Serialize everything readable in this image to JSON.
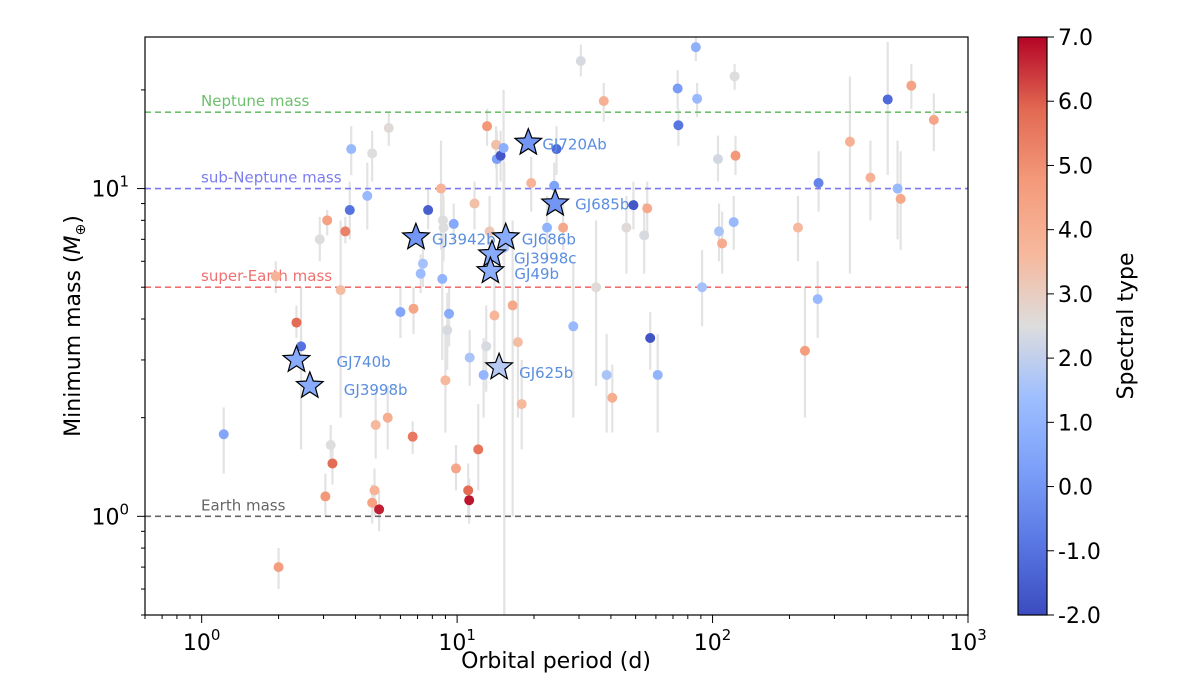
{
  "chart_data": {
    "type": "scatter",
    "xlabel": "Orbital period (d)",
    "ylabel_main": "Minimum mass (",
    "ylabel_sym": "M",
    "ylabel_sub": "⊕",
    "ylabel_close": ")",
    "xscale": "log",
    "yscale": "log",
    "xlim": [
      0.6,
      1000
    ],
    "ylim": [
      0.5,
      29
    ],
    "x_ticks": [
      {
        "base": "10",
        "exp": "0",
        "value": 1
      },
      {
        "base": "10",
        "exp": "1",
        "value": 10
      },
      {
        "base": "10",
        "exp": "2",
        "value": 100
      },
      {
        "base": "10",
        "exp": "3",
        "value": 1000
      }
    ],
    "y_ticks": [
      {
        "base": "10",
        "exp": "0",
        "value": 1
      },
      {
        "base": "10",
        "exp": "1",
        "value": 10
      }
    ],
    "reference_lines": [
      {
        "label": "Neptune mass",
        "value": 17.1,
        "color": "#6cc06c"
      },
      {
        "label": "sub-Neptune mass",
        "value": 10,
        "color": "#7b7bf0"
      },
      {
        "label": "super-Earth mass",
        "value": 5,
        "color": "#f07070"
      },
      {
        "label": "Earth mass",
        "value": 1,
        "color": "#666666"
      }
    ],
    "colorbar": {
      "label": "Spectral type",
      "min": -2,
      "max": 7,
      "ticks": [
        "-2.0",
        "-1.0",
        "0.0",
        "1.0",
        "2.0",
        "3.0",
        "4.0",
        "5.0",
        "6.0",
        "7.0"
      ]
    },
    "points": [
      {
        "x": 1.22,
        "y": 1.78,
        "s": 0.5,
        "lo": 1.35,
        "hi": 2.15
      },
      {
        "x": 1.95,
        "y": 5.4,
        "s": 3.8,
        "lo": 4.8,
        "hi": 6.0
      },
      {
        "x": 2.0,
        "y": 0.7,
        "s": 4.6,
        "lo": 0.6,
        "hi": 0.8
      },
      {
        "x": 2.35,
        "y": 3.9,
        "s": 5.8,
        "lo": 3.5,
        "hi": 4.4
      },
      {
        "x": 2.45,
        "y": 3.3,
        "s": -1.0,
        "lo": 1.6,
        "hi": 5.0
      },
      {
        "x": 2.9,
        "y": 7.0,
        "s": 2.5,
        "lo": 6.0,
        "hi": 8.2
      },
      {
        "x": 3.05,
        "y": 1.15,
        "s": 4.8,
        "lo": 1.0,
        "hi": 1.35
      },
      {
        "x": 3.1,
        "y": 8.0,
        "s": 4.5,
        "lo": 7.2,
        "hi": 8.6
      },
      {
        "x": 3.2,
        "y": 1.65,
        "s": 2.5,
        "lo": 1.5,
        "hi": 1.9
      },
      {
        "x": 3.25,
        "y": 1.45,
        "s": 5.8,
        "lo": 1.25,
        "hi": 1.7
      },
      {
        "x": 3.5,
        "y": 4.9,
        "s": 3.5,
        "lo": 2.0,
        "hi": 8.0
      },
      {
        "x": 3.65,
        "y": 7.4,
        "s": 5.3,
        "lo": 6.8,
        "hi": 8.2
      },
      {
        "x": 3.8,
        "y": 8.6,
        "s": -1.0,
        "lo": 7.0,
        "hi": 10.5
      },
      {
        "x": 3.85,
        "y": 13.2,
        "s": 1.2,
        "lo": 11.0,
        "hi": 15.5
      },
      {
        "x": 4.45,
        "y": 9.5,
        "s": 1.2,
        "lo": 7.5,
        "hi": 12.0
      },
      {
        "x": 4.65,
        "y": 1.1,
        "s": 4.5,
        "lo": 0.95,
        "hi": 1.25
      },
      {
        "x": 4.65,
        "y": 12.8,
        "s": 2.5,
        "lo": 10.5,
        "hi": 15.0
      },
      {
        "x": 4.75,
        "y": 1.2,
        "s": 3.8,
        "lo": 1.0,
        "hi": 1.4
      },
      {
        "x": 4.8,
        "y": 1.9,
        "s": 3.6,
        "lo": 1.5,
        "hi": 2.4
      },
      {
        "x": 4.95,
        "y": 1.05,
        "s": 6.7,
        "lo": 0.9,
        "hi": 1.2
      },
      {
        "x": 5.35,
        "y": 2.0,
        "s": 4.0,
        "lo": 1.6,
        "hi": 2.5
      },
      {
        "x": 5.4,
        "y": 15.3,
        "s": 2.6,
        "lo": 13.5,
        "hi": 17.0
      },
      {
        "x": 6.0,
        "y": 4.2,
        "s": 0.5,
        "lo": 3.5,
        "hi": 5.0
      },
      {
        "x": 6.7,
        "y": 1.75,
        "s": 5.5,
        "lo": 1.55,
        "hi": 1.95
      },
      {
        "x": 6.75,
        "y": 4.3,
        "s": 4.3,
        "lo": 3.6,
        "hi": 5.0
      },
      {
        "x": 7.2,
        "y": 5.5,
        "s": 1.3,
        "lo": 4.8,
        "hi": 6.3
      },
      {
        "x": 7.35,
        "y": 5.9,
        "s": 1.5,
        "lo": 5.0,
        "hi": 7.0
      },
      {
        "x": 7.7,
        "y": 8.6,
        "s": -1.5,
        "lo": 7.5,
        "hi": 10.0
      },
      {
        "x": 8.65,
        "y": 10.0,
        "s": 3.8,
        "lo": 6.5,
        "hi": 14.0
      },
      {
        "x": 8.75,
        "y": 5.3,
        "s": 1.0,
        "lo": 3.0,
        "hi": 7.5
      },
      {
        "x": 8.8,
        "y": 8.0,
        "s": 2.5,
        "lo": 6.5,
        "hi": 10.0
      },
      {
        "x": 8.85,
        "y": 7.6,
        "s": 2.5,
        "lo": 6.0,
        "hi": 9.5
      },
      {
        "x": 9.0,
        "y": 2.6,
        "s": 3.6,
        "lo": 1.8,
        "hi": 3.6
      },
      {
        "x": 9.15,
        "y": 3.7,
        "s": 2.4,
        "lo": 2.8,
        "hi": 4.8
      },
      {
        "x": 9.3,
        "y": 4.15,
        "s": 0.7,
        "lo": 3.3,
        "hi": 5.0
      },
      {
        "x": 9.7,
        "y": 7.8,
        "s": 0.6,
        "lo": 6.8,
        "hi": 9.0
      },
      {
        "x": 9.9,
        "y": 1.4,
        "s": 4.3,
        "lo": 1.2,
        "hi": 1.65
      },
      {
        "x": 11.05,
        "y": 1.2,
        "s": 5.8,
        "lo": 1.0,
        "hi": 1.45
      },
      {
        "x": 11.15,
        "y": 1.12,
        "s": 6.8,
        "lo": 0.95,
        "hi": 1.3
      },
      {
        "x": 11.2,
        "y": 3.05,
        "s": 1.6,
        "lo": 2.5,
        "hi": 3.7
      },
      {
        "x": 11.7,
        "y": 9.0,
        "s": 3.4,
        "lo": 7.5,
        "hi": 10.5
      },
      {
        "x": 12.1,
        "y": 1.6,
        "s": 5.6,
        "lo": 1.2,
        "hi": 2.2
      },
      {
        "x": 12.7,
        "y": 2.7,
        "s": 1.1,
        "lo": 2.0,
        "hi": 3.5
      },
      {
        "x": 13.0,
        "y": 3.3,
        "s": 2.4,
        "lo": 2.4,
        "hi": 4.4
      },
      {
        "x": 13.1,
        "y": 15.5,
        "s": 4.8,
        "lo": 13.5,
        "hi": 17.5
      },
      {
        "x": 13.4,
        "y": 7.4,
        "s": 3.2,
        "lo": 5.5,
        "hi": 9.5
      },
      {
        "x": 14.0,
        "y": 4.1,
        "s": 3.7,
        "lo": 3.0,
        "hi": 5.5
      },
      {
        "x": 14.2,
        "y": 13.6,
        "s": 3.4,
        "lo": 11.5,
        "hi": 15.5
      },
      {
        "x": 14.3,
        "y": 12.3,
        "s": 0.3,
        "lo": 10.0,
        "hi": 15.0
      },
      {
        "x": 14.8,
        "y": 12.6,
        "s": -1.7,
        "lo": 10.5,
        "hi": 15.0
      },
      {
        "x": 15.2,
        "y": 13.3,
        "s": 0.8,
        "lo": 6.0,
        "hi": 20.0
      },
      {
        "x": 15.3,
        "y": 6.6,
        "s": 1.6,
        "lo": 0.5,
        "hi": 12.0
      },
      {
        "x": 16.5,
        "y": 4.4,
        "s": 4.2,
        "lo": 1.0,
        "hi": 8.0
      },
      {
        "x": 17.3,
        "y": 3.4,
        "s": 3.5,
        "lo": 2.0,
        "hi": 5.0
      },
      {
        "x": 17.9,
        "y": 2.2,
        "s": 3.6,
        "lo": 1.6,
        "hi": 3.0
      },
      {
        "x": 19.5,
        "y": 10.4,
        "s": 3.8,
        "lo": 8.5,
        "hi": 12.5
      },
      {
        "x": 22.5,
        "y": 7.6,
        "s": 1.0,
        "lo": 6.0,
        "hi": 9.5
      },
      {
        "x": 24.0,
        "y": 10.2,
        "s": 0.4,
        "lo": 8.5,
        "hi": 12.0
      },
      {
        "x": 24.5,
        "y": 13.2,
        "s": -1.2,
        "lo": 11.0,
        "hi": 15.5
      },
      {
        "x": 26.0,
        "y": 7.6,
        "s": 4.2,
        "lo": 6.5,
        "hi": 9.0
      },
      {
        "x": 28.5,
        "y": 3.8,
        "s": 1.2,
        "lo": 2.0,
        "hi": 6.0
      },
      {
        "x": 30.5,
        "y": 24.5,
        "s": 2.4,
        "lo": 22.0,
        "hi": 27.5
      },
      {
        "x": 35.0,
        "y": 5.0,
        "s": 2.6,
        "lo": 2.5,
        "hi": 8.0
      },
      {
        "x": 37.5,
        "y": 18.5,
        "s": 3.9,
        "lo": 16.0,
        "hi": 21.0
      },
      {
        "x": 38.5,
        "y": 2.7,
        "s": 1.6,
        "lo": 1.8,
        "hi": 3.6
      },
      {
        "x": 40.5,
        "y": 2.3,
        "s": 4.0,
        "lo": 1.8,
        "hi": 2.9
      },
      {
        "x": 46.0,
        "y": 7.6,
        "s": 2.6,
        "lo": 5.5,
        "hi": 9.5
      },
      {
        "x": 49.0,
        "y": 8.9,
        "s": -1.7,
        "lo": 7.5,
        "hi": 10.5
      },
      {
        "x": 54.0,
        "y": 7.2,
        "s": 2.4,
        "lo": 5.5,
        "hi": 9.0
      },
      {
        "x": 55.5,
        "y": 8.7,
        "s": 4.1,
        "lo": 7.0,
        "hi": 10.5
      },
      {
        "x": 57.0,
        "y": 3.5,
        "s": -1.8,
        "lo": 2.8,
        "hi": 4.2
      },
      {
        "x": 61.0,
        "y": 2.7,
        "s": 1.0,
        "lo": 1.8,
        "hi": 3.6
      },
      {
        "x": 73.0,
        "y": 20.2,
        "s": 0.2,
        "lo": 17.5,
        "hi": 23.0
      },
      {
        "x": 73.5,
        "y": 15.6,
        "s": -0.9,
        "lo": 13.5,
        "hi": 17.5
      },
      {
        "x": 86.0,
        "y": 27.0,
        "s": 0.9,
        "lo": 24.5,
        "hi": 29.5
      },
      {
        "x": 87.0,
        "y": 18.8,
        "s": 1.2,
        "lo": 16.5,
        "hi": 21.0
      },
      {
        "x": 91.0,
        "y": 5.0,
        "s": 1.5,
        "lo": 3.8,
        "hi": 6.5
      },
      {
        "x": 105.0,
        "y": 12.3,
        "s": 2.3,
        "lo": 10.5,
        "hi": 14.5
      },
      {
        "x": 106.0,
        "y": 7.4,
        "s": 1.6,
        "lo": 6.0,
        "hi": 9.0
      },
      {
        "x": 109.0,
        "y": 6.8,
        "s": 4.1,
        "lo": 5.5,
        "hi": 8.5
      },
      {
        "x": 121.0,
        "y": 7.9,
        "s": 1.2,
        "lo": 6.5,
        "hi": 9.5
      },
      {
        "x": 122.0,
        "y": 22.0,
        "s": 2.5,
        "lo": 20.0,
        "hi": 24.0
      },
      {
        "x": 123.0,
        "y": 12.6,
        "s": 4.8,
        "lo": 11.0,
        "hi": 14.5
      },
      {
        "x": 216.0,
        "y": 7.6,
        "s": 3.6,
        "lo": 6.0,
        "hi": 9.5
      },
      {
        "x": 230.0,
        "y": 3.2,
        "s": 4.6,
        "lo": 2.0,
        "hi": 5.0
      },
      {
        "x": 258.0,
        "y": 4.6,
        "s": 1.2,
        "lo": 3.5,
        "hi": 6.0
      },
      {
        "x": 260.0,
        "y": 10.4,
        "s": -0.5,
        "lo": 8.5,
        "hi": 13.0
      },
      {
        "x": 345.0,
        "y": 13.9,
        "s": 3.9,
        "lo": 5.5,
        "hi": 22.0
      },
      {
        "x": 415.0,
        "y": 10.8,
        "s": 3.9,
        "lo": 8.0,
        "hi": 14.0
      },
      {
        "x": 485.0,
        "y": 18.7,
        "s": -1.2,
        "lo": 11.0,
        "hi": 28.0
      },
      {
        "x": 530.0,
        "y": 10.0,
        "s": 1.2,
        "lo": 7.0,
        "hi": 14.0
      },
      {
        "x": 545.0,
        "y": 9.3,
        "s": 4.2,
        "lo": 6.5,
        "hi": 13.0
      },
      {
        "x": 600.0,
        "y": 20.6,
        "s": 4.4,
        "lo": 17.5,
        "hi": 24.0
      },
      {
        "x": 735.0,
        "y": 16.2,
        "s": 4.3,
        "lo": 13.0,
        "hi": 19.5
      }
    ],
    "stars": [
      {
        "label": "GJ720Ab",
        "x": 19.0,
        "y": 13.8,
        "s": 0.0,
        "dx": 14,
        "dy": 2
      },
      {
        "label": "GJ685b",
        "x": 24.2,
        "y": 9.0,
        "s": 0.0,
        "dx": 20,
        "dy": 1
      },
      {
        "label": "GJ3942b",
        "x": 6.9,
        "y": 7.1,
        "s": 0.0,
        "dx": 16,
        "dy": 2
      },
      {
        "label": "GJ686b",
        "x": 15.5,
        "y": 7.1,
        "s": 0.7,
        "dx": 16,
        "dy": 2
      },
      {
        "label": "GJ3998c",
        "x": 13.7,
        "y": 6.3,
        "s": 0.7,
        "dx": 22,
        "dy": 4
      },
      {
        "label": "GJ49b",
        "x": 13.5,
        "y": 5.6,
        "s": 0.8,
        "dx": 24,
        "dy": 3
      },
      {
        "label": "GJ740b",
        "x": 2.35,
        "y": 3.0,
        "s": 0.7,
        "dx": 40,
        "dy": 2
      },
      {
        "label": "GJ3998b",
        "x": 2.65,
        "y": 2.5,
        "s": 0.7,
        "dx": 34,
        "dy": 4
      },
      {
        "label": "GJ625b",
        "x": 14.6,
        "y": 2.85,
        "s": 1.8,
        "dx": 20,
        "dy": 6
      }
    ]
  }
}
